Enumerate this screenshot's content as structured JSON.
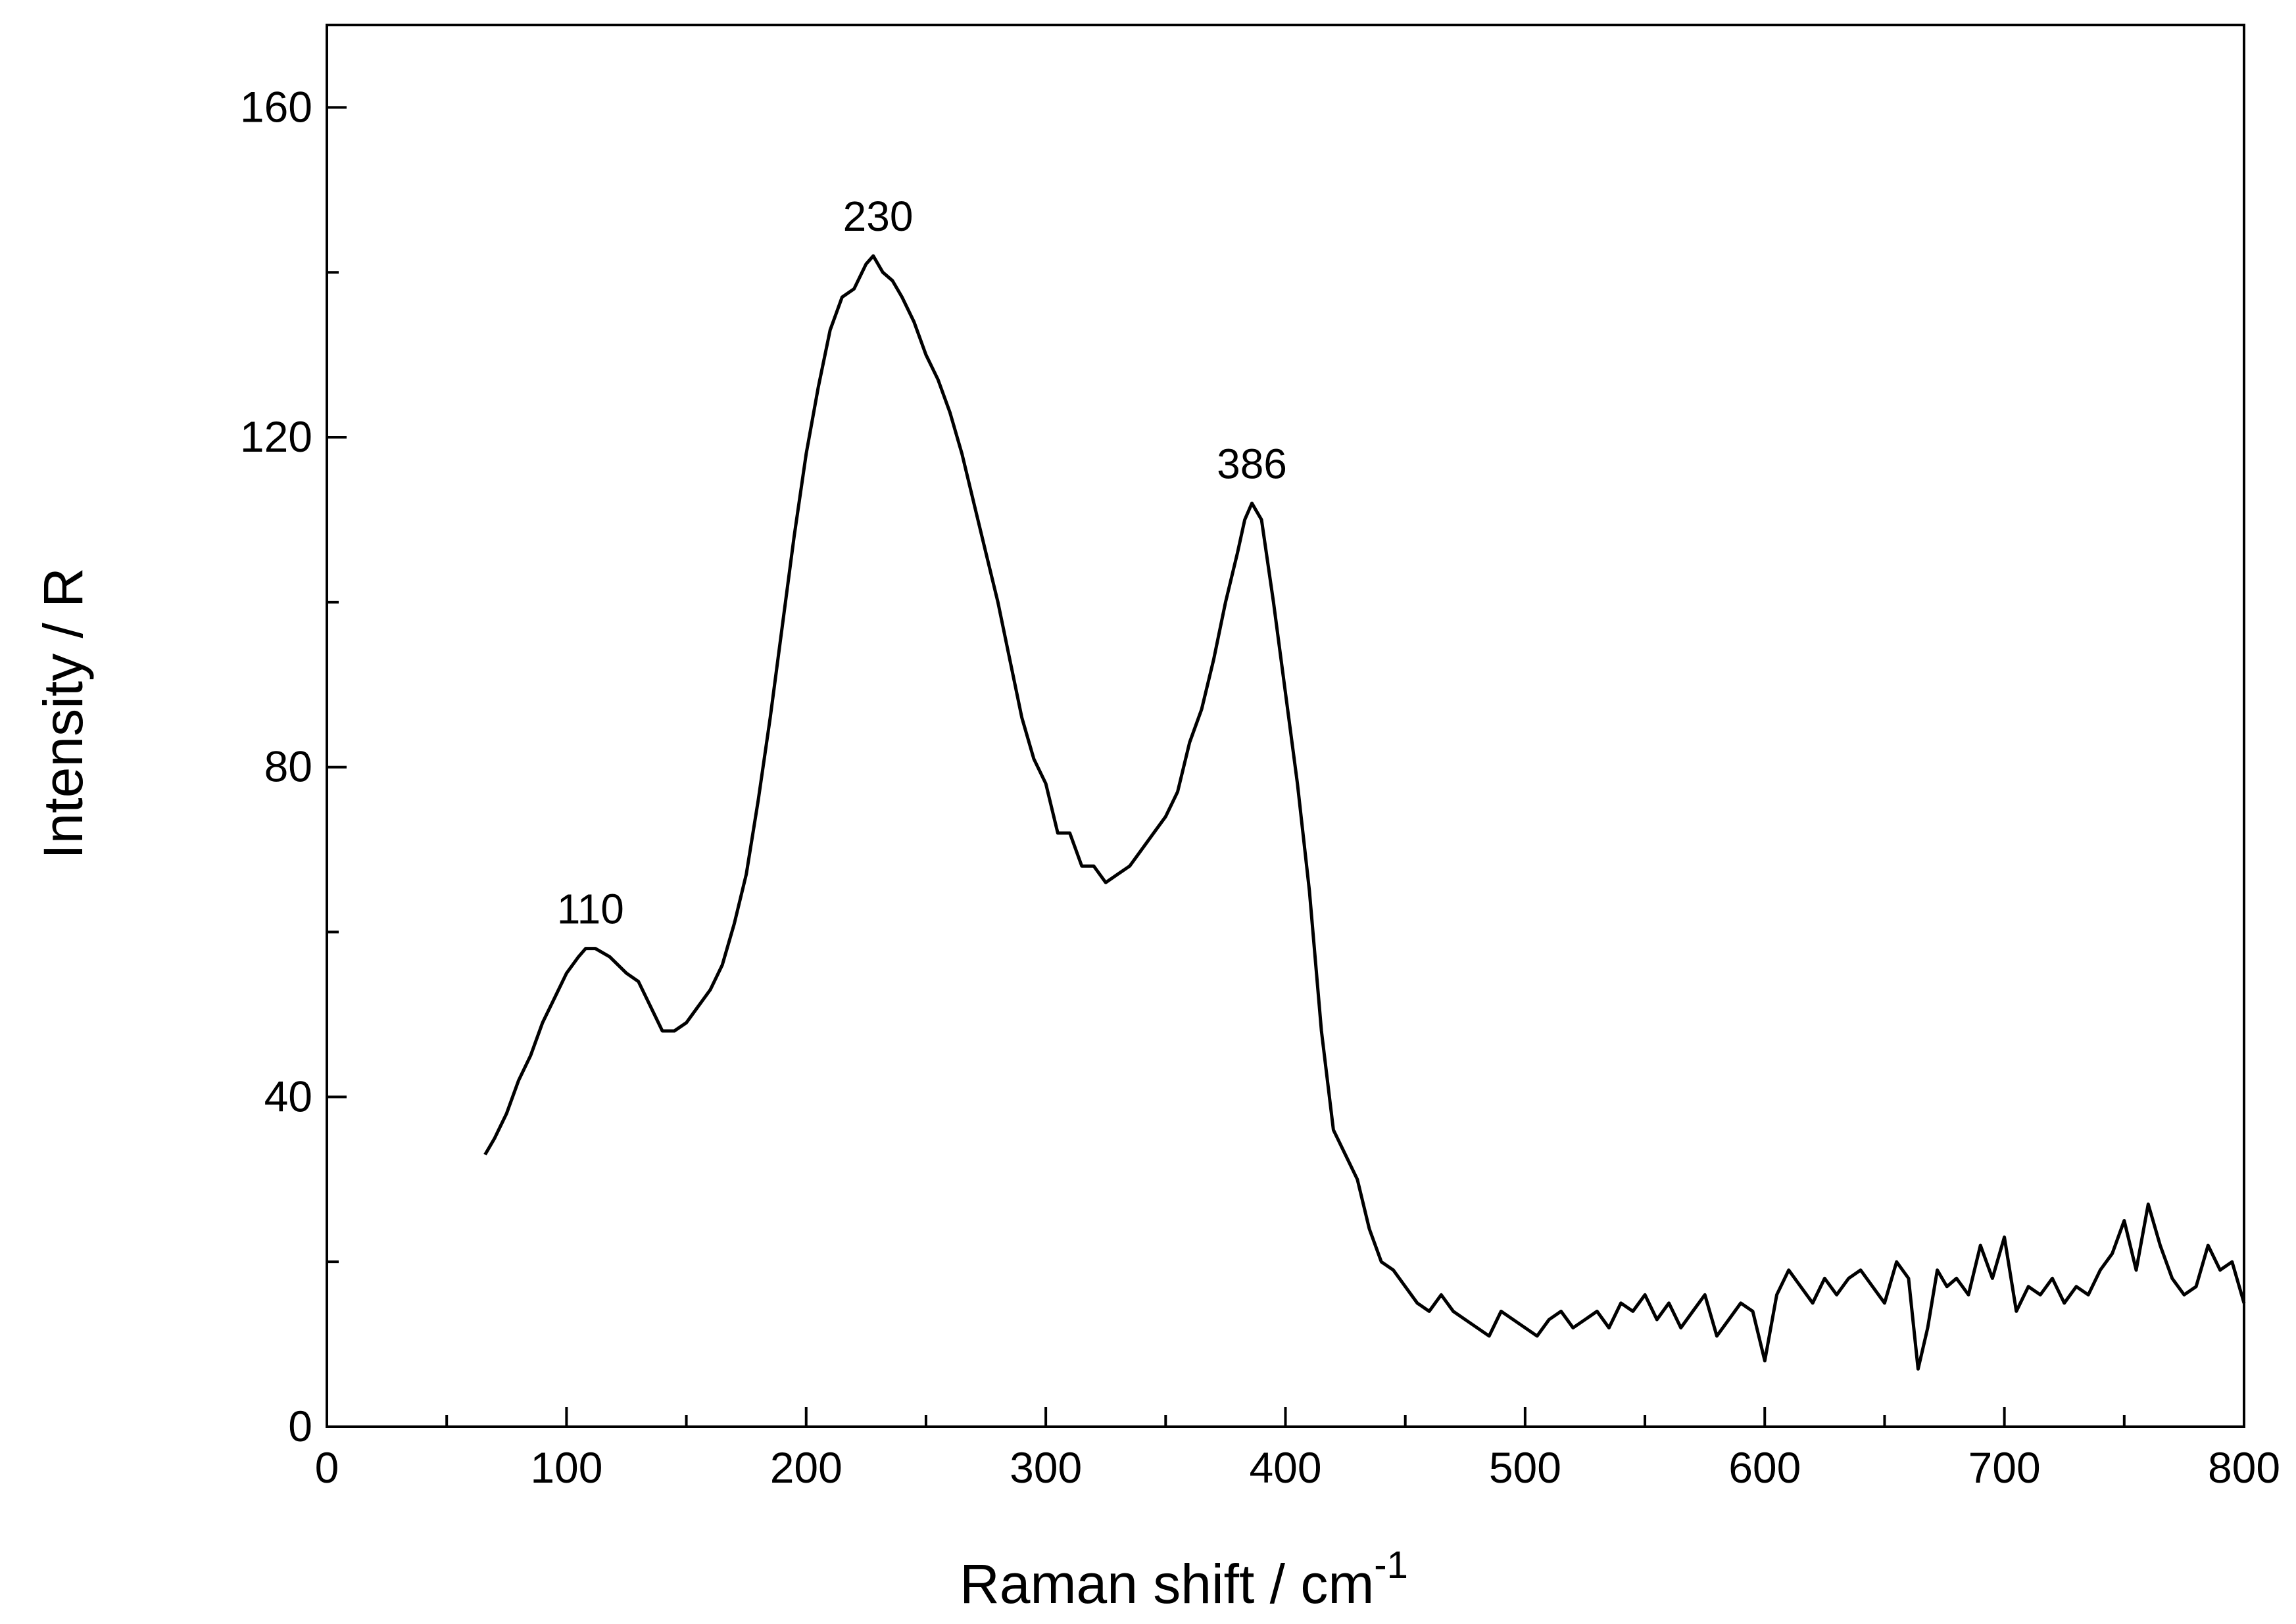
{
  "chart_data": {
    "type": "line",
    "title": "",
    "xlabel": "Raman shift / cm",
    "xlabel_superscript": "-1",
    "ylabel": "Intensity / R",
    "xlim": [
      0,
      800
    ],
    "ylim": [
      0,
      170
    ],
    "x_ticks": [
      0,
      100,
      200,
      300,
      400,
      500,
      600,
      700,
      800
    ],
    "y_ticks": [
      0,
      40,
      80,
      120,
      160
    ],
    "x_minor_step": 50,
    "y_minor_step": 20,
    "grid": false,
    "legend": "none",
    "line_color": "#000000",
    "annotations": [
      {
        "text": "110",
        "x": 110,
        "y": 58
      },
      {
        "text": "230",
        "x": 230,
        "y": 142
      },
      {
        "text": "386",
        "x": 386,
        "y": 112
      }
    ],
    "series": [
      {
        "x": [
          66,
          70,
          75,
          80,
          85,
          90,
          95,
          100,
          105,
          108,
          112,
          118,
          125,
          130,
          135,
          140,
          145,
          150,
          155,
          160,
          165,
          170,
          175,
          180,
          185,
          190,
          195,
          200,
          205,
          210,
          215,
          220,
          225,
          228,
          232,
          236,
          240,
          245,
          250,
          255,
          260,
          265,
          270,
          275,
          280,
          285,
          290,
          295,
          300,
          305,
          310,
          315,
          320,
          325,
          330,
          335,
          340,
          345,
          350,
          355,
          360,
          365,
          370,
          375,
          380,
          383,
          386,
          390,
          395,
          400,
          405,
          410,
          415,
          420,
          425,
          430,
          435,
          440,
          445,
          450,
          455,
          460,
          465,
          470,
          475,
          480,
          485,
          490,
          495,
          500,
          505,
          510,
          515,
          520,
          525,
          530,
          535,
          540,
          545,
          550,
          555,
          560,
          565,
          570,
          575,
          580,
          585,
          590,
          595,
          600,
          605,
          610,
          615,
          620,
          625,
          630,
          635,
          640,
          645,
          650,
          655,
          660,
          664,
          668,
          672,
          676,
          680,
          685,
          690,
          695,
          700,
          705,
          710,
          715,
          720,
          725,
          730,
          735,
          740,
          745,
          750,
          755,
          760,
          765,
          770,
          775,
          780,
          785,
          790,
          795,
          800
        ],
        "y": [
          33,
          35,
          38,
          42,
          45,
          49,
          52,
          55,
          57,
          58,
          58,
          57,
          55,
          54,
          51,
          48,
          48,
          49,
          51,
          53,
          56,
          61,
          67,
          76,
          86,
          97,
          108,
          118,
          126,
          133,
          137,
          138,
          141,
          142,
          140,
          139,
          137,
          134,
          130,
          127,
          123,
          118,
          112,
          106,
          100,
          93,
          86,
          81,
          78,
          72,
          72,
          68,
          68,
          66,
          67,
          68,
          70,
          72,
          74,
          77,
          83,
          87,
          93,
          100,
          106,
          110,
          112,
          110,
          100,
          89,
          78,
          65,
          48,
          36,
          33,
          30,
          24,
          20,
          19,
          17,
          15,
          14,
          16,
          14,
          13,
          12,
          11,
          14,
          13,
          12,
          11,
          13,
          14,
          12,
          13,
          14,
          12,
          15,
          14,
          16,
          13,
          15,
          12,
          14,
          16,
          11,
          13,
          15,
          14,
          8,
          16,
          19,
          17,
          15,
          18,
          16,
          18,
          19,
          17,
          15,
          20,
          18,
          7,
          12,
          19,
          17,
          18,
          16,
          22,
          18,
          23,
          14,
          17,
          16,
          18,
          15,
          17,
          16,
          19,
          21,
          25,
          19,
          27,
          22,
          18,
          16,
          17,
          22,
          19,
          20,
          15
        ]
      }
    ]
  }
}
